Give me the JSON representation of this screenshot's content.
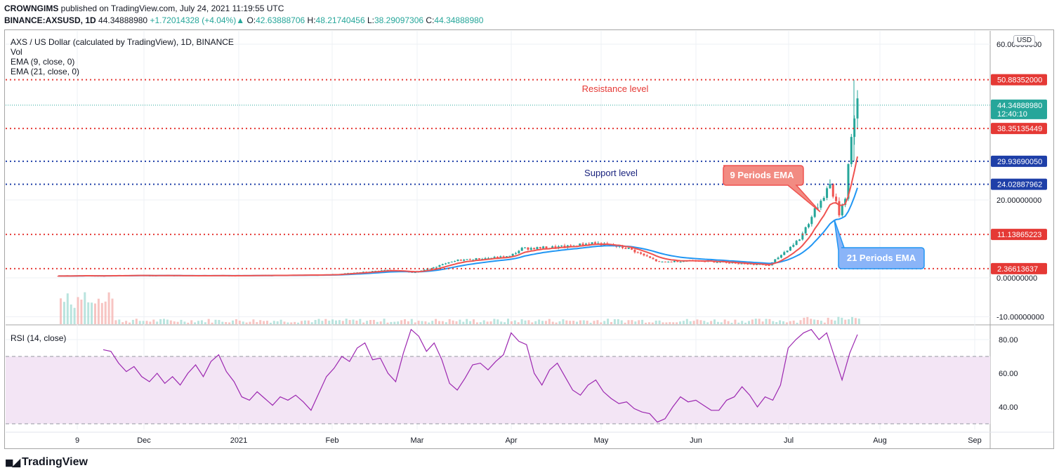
{
  "header": {
    "publisher": "CROWNGIMS",
    "published_text": "published on TradingView.com, July 24, 2021 11:19:55 UTC",
    "symbol": "BINANCE:AXSUSD, 1D",
    "last": "44.34888980",
    "change": "+1.72014328 (+4.04%)",
    "open_label": "O:",
    "open": "42.63888706",
    "high_label": "H:",
    "high": "48.21740456",
    "low_label": "L:",
    "low": "38.29097306",
    "close_label": "C:",
    "close": "44.34888980"
  },
  "legend": {
    "title": "AXS / US Dollar (calculated by TradingView), 1D, BINANCE",
    "vol": "Vol",
    "ema9": "EMA (9, close, 0)",
    "ema21": "EMA (21, close, 0)"
  },
  "rsi_label": "RSI (14, close)",
  "currency": "USD",
  "footer_brand": "TradingView",
  "colors": {
    "up": "#26a69a",
    "down": "#ef5350",
    "ema9": "#ef5350",
    "ema21": "#2196f3",
    "resistance": "#e53935",
    "support": "#1e3fa8",
    "rsi_line": "#9c27b0",
    "rsi_band": "#f3e5f5"
  },
  "chart_data": [
    {
      "type": "candlestick",
      "title": "AXS / US Dollar (calculated by TradingView), 1D, BINANCE",
      "x_ticks": [
        "9",
        "Dec",
        "2021",
        "Feb",
        "Mar",
        "Apr",
        "May",
        "Jun",
        "Jul",
        "Aug",
        "Sep"
      ],
      "y_ticks": [
        "60.00000000",
        "20.00000000",
        "0.00000000",
        "-10.00000000"
      ],
      "ylim": [
        -10,
        60
      ],
      "horizontal_levels": [
        {
          "label": "50.88352000",
          "value": 50.88352,
          "style": "resistance"
        },
        {
          "label": "38.35135449",
          "value": 38.35135449,
          "style": "resistance"
        },
        {
          "label": "29.93690050",
          "value": 29.9369005,
          "style": "support"
        },
        {
          "label": "24.02887962",
          "value": 24.02887962,
          "style": "support"
        },
        {
          "label": "11.13865223",
          "value": 11.13865223,
          "style": "resistance"
        },
        {
          "label": "2.36613637",
          "value": 2.36613637,
          "style": "resistance"
        }
      ],
      "last_price": {
        "label": "44.34888980",
        "countdown": "12:40:10",
        "value": 44.3488898
      },
      "annotations": [
        {
          "text": "Resistance level"
        },
        {
          "text": "Support level"
        },
        {
          "text": "9 Periods EMA"
        },
        {
          "text": "21 Periods EMA"
        }
      ],
      "close_path": [
        {
          "date": "2020-11-04",
          "close": 0.5
        },
        {
          "date": "2020-12-01",
          "close": 0.6
        },
        {
          "date": "2021-01-01",
          "close": 0.55
        },
        {
          "date": "2021-02-01",
          "close": 0.8
        },
        {
          "date": "2021-02-20",
          "close": 2.0
        },
        {
          "date": "2021-03-01",
          "close": 1.4
        },
        {
          "date": "2021-03-15",
          "close": 4.5
        },
        {
          "date": "2021-04-01",
          "close": 5.5
        },
        {
          "date": "2021-04-05",
          "close": 7.5
        },
        {
          "date": "2021-04-20",
          "close": 8.0
        },
        {
          "date": "2021-04-28",
          "close": 9.0
        },
        {
          "date": "2021-05-10",
          "close": 7.5
        },
        {
          "date": "2021-05-20",
          "close": 4.0
        },
        {
          "date": "2021-06-01",
          "close": 4.5
        },
        {
          "date": "2021-06-25",
          "close": 3.2
        },
        {
          "date": "2021-07-05",
          "close": 10.0
        },
        {
          "date": "2021-07-12",
          "close": 20.0
        },
        {
          "date": "2021-07-15",
          "close": 24.0
        },
        {
          "date": "2021-07-18",
          "close": 16.5
        },
        {
          "date": "2021-07-20",
          "close": 21.0
        },
        {
          "date": "2021-07-22",
          "close": 37.0
        },
        {
          "date": "2021-07-24",
          "close": 44.35
        }
      ]
    },
    {
      "type": "line",
      "title": "RSI (14, close)",
      "y_ticks": [
        "80.00",
        "60.00",
        "40.00"
      ],
      "ylim": [
        28,
        90
      ],
      "band": [
        30,
        70
      ],
      "series": [
        {
          "name": "RSI (14, close)",
          "values": [
            74,
            73,
            66,
            61,
            64,
            58,
            55,
            60,
            54,
            58,
            53,
            60,
            65,
            58,
            67,
            71,
            61,
            55,
            46,
            44,
            49,
            45,
            41,
            46,
            44,
            47,
            43,
            38,
            48,
            58,
            63,
            70,
            67,
            75,
            78,
            68,
            69,
            60,
            55,
            72,
            86,
            82,
            73,
            78,
            68,
            54,
            50,
            57,
            65,
            66,
            62,
            67,
            71,
            84,
            79,
            77,
            60,
            53,
            62,
            66,
            58,
            50,
            47,
            53,
            56,
            49,
            45,
            42,
            43,
            39,
            37,
            36,
            31,
            33,
            40,
            46,
            43,
            44,
            41,
            38,
            38,
            44,
            46,
            52,
            47,
            40,
            46,
            44,
            53,
            75,
            80,
            84,
            86,
            80,
            84,
            70,
            56,
            72,
            83
          ]
        }
      ]
    }
  ]
}
